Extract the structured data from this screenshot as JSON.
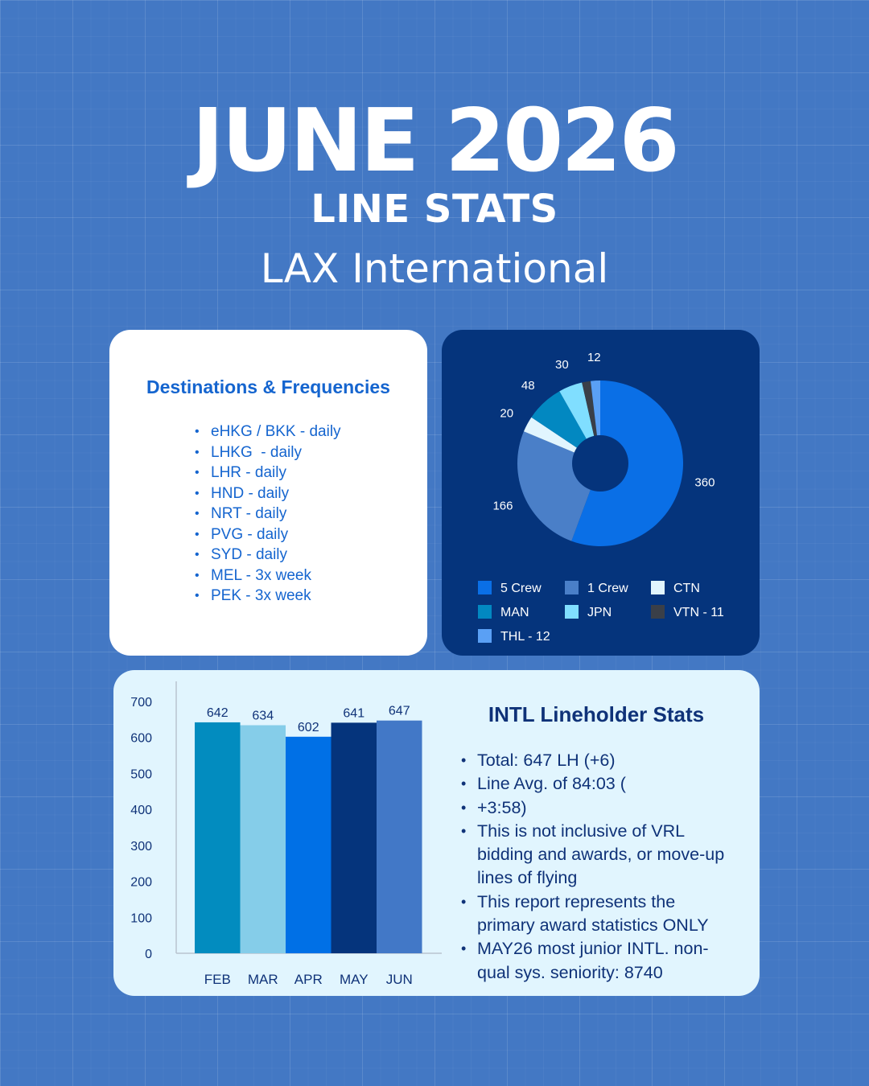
{
  "header": {
    "title": "JUNE 2026",
    "subtitle": "LINE STATS",
    "location": "LAX International"
  },
  "destinations": {
    "heading": "Destinations & Frequencies",
    "items": [
      "eHKG / BKK - daily",
      "LHKG  - daily",
      "LHR - daily",
      "HND - daily",
      "NRT - daily",
      "PVG - daily",
      "SYD - daily",
      "MEL - 3x week",
      "PEK - 3x week"
    ]
  },
  "stats": {
    "heading": "INTL Lineholder Stats",
    "items": [
      "Total: 647 LH (+6)",
      "Line Avg. of 84:03 (",
      "+3:58)",
      "This is not inclusive of VRL bidding and awards, or move-up lines of flying",
      "This report represents the primary award statistics ONLY",
      "MAY26 most junior INTL. non-qual sys. seniority: 8740"
    ]
  },
  "chart_data": [
    {
      "type": "pie",
      "donut": true,
      "slices": [
        {
          "label": "5 Crew",
          "value": 360,
          "data_label": "360",
          "color": "#0a6fe6"
        },
        {
          "label": "1 Crew",
          "value": 166,
          "data_label": "166",
          "color": "#4a7fc8"
        },
        {
          "label": "CTN",
          "value": 20,
          "data_label": "20",
          "color": "#e1f5fe"
        },
        {
          "label": "MAN",
          "value": 48,
          "data_label": "48",
          "color": "#0288c1"
        },
        {
          "label": "JPN",
          "value": 30,
          "data_label": "30",
          "color": "#80deff"
        },
        {
          "label": "VTN - 11",
          "value": 11,
          "data_label": "",
          "color": "#3a3f48"
        },
        {
          "label": "THL - 12",
          "value": 12,
          "data_label": "12",
          "color": "#5aa0f5"
        }
      ],
      "legend_position": "bottom"
    },
    {
      "type": "bar",
      "categories": [
        "FEB",
        "MAR",
        "APR",
        "MAY",
        "JUN"
      ],
      "values": [
        642,
        634,
        602,
        641,
        647
      ],
      "data_labels": [
        "642",
        "634",
        "602",
        "641",
        "647"
      ],
      "colors": [
        "#028cbf",
        "#85cde9",
        "#0070e6",
        "#05347c",
        "#4278c7"
      ],
      "ylim": [
        0,
        700
      ],
      "yticks": [
        0,
        100,
        200,
        300,
        400,
        500,
        600,
        700
      ],
      "grid": false
    }
  ]
}
